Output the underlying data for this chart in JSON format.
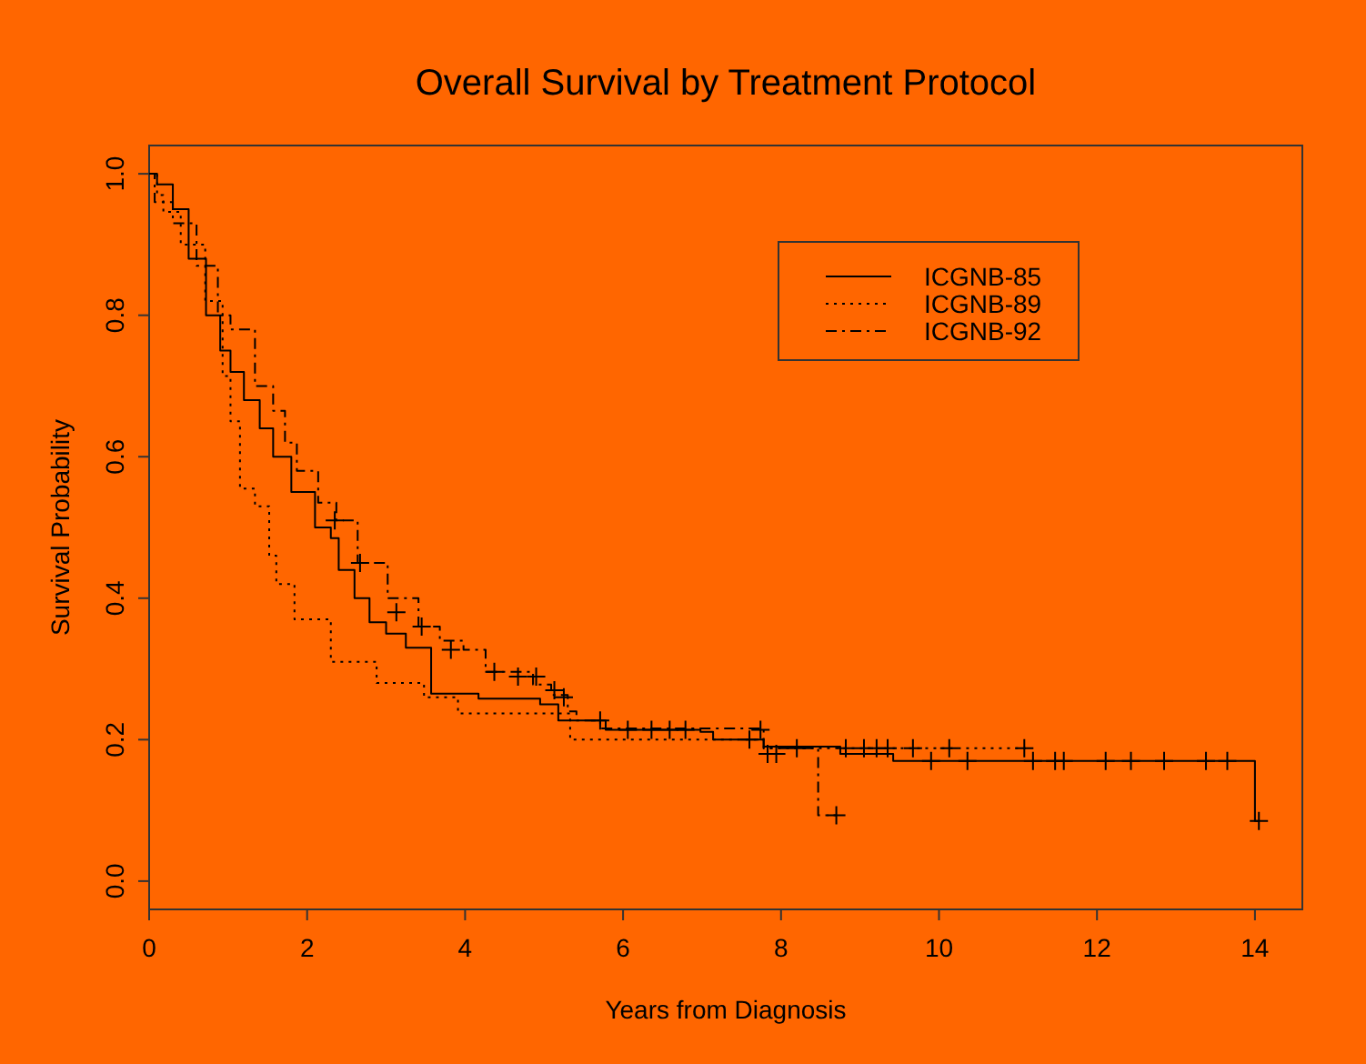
{
  "chart_data": {
    "type": "step",
    "title": "Overall Survival by Treatment Protocol",
    "xlabel": "Years from Diagnosis",
    "ylabel": "Survival Probability",
    "xlim": [
      0,
      14.6
    ],
    "ylim": [
      -0.04,
      1.04
    ],
    "xticks": [
      0,
      2,
      4,
      6,
      8,
      10,
      12,
      14
    ],
    "yticks": [
      {
        "value": 0,
        "label": "0.0"
      },
      {
        "value": 0.2,
        "label": "0.2"
      },
      {
        "value": 0.4,
        "label": "0.4"
      },
      {
        "value": 0.6,
        "label": "0.6"
      },
      {
        "value": 0.8,
        "label": "0.8"
      },
      {
        "value": 1,
        "label": "1.0"
      }
    ],
    "grid": false,
    "legend": "top right",
    "series": [
      {
        "name": "ICGNB-85",
        "color": "#000000",
        "line_style": "solid",
        "x": [
          0,
          0.1,
          0.3,
          0.5,
          0.72,
          0.9,
          1.03,
          1.2,
          1.4,
          1.57,
          1.8,
          2.1,
          2.3,
          2.4,
          2.6,
          2.79,
          3.0,
          3.25,
          3.57,
          4.17,
          4.95,
          5.18,
          5.78,
          6.98,
          7.14,
          7.78,
          8.75,
          9.42,
          14.0,
          14.05
        ],
        "values": [
          1.0,
          0.985,
          0.95,
          0.88,
          0.8,
          0.75,
          0.72,
          0.68,
          0.64,
          0.6,
          0.55,
          0.5,
          0.485,
          0.44,
          0.4,
          0.366,
          0.35,
          0.33,
          0.265,
          0.258,
          0.25,
          0.227,
          0.214,
          0.211,
          0.2,
          0.19,
          0.18,
          0.17,
          0.085,
          0.085
        ]
      },
      {
        "name": "ICGNB-89",
        "color": "#000000",
        "line_style": "dotted",
        "x": [
          0,
          0.1,
          0.18,
          0.4,
          0.71,
          0.93,
          1.03,
          1.15,
          1.34,
          1.52,
          1.61,
          1.84,
          2.3,
          2.88,
          3.48,
          3.91,
          5.33,
          7.78,
          11.1
        ],
        "values": [
          1.0,
          0.97,
          0.946,
          0.9,
          0.82,
          0.714,
          0.65,
          0.555,
          0.53,
          0.46,
          0.42,
          0.37,
          0.31,
          0.28,
          0.26,
          0.237,
          0.2,
          0.188,
          0.188
        ]
      },
      {
        "name": "ICGNB-92",
        "color": "#000000",
        "line_style": "dashed",
        "x": [
          0,
          0.07,
          0.3,
          0.6,
          0.87,
          1.03,
          1.34,
          1.57,
          1.72,
          1.87,
          2.14,
          2.37,
          2.64,
          3.02,
          3.41,
          3.68,
          3.98,
          4.26,
          4.86,
          5.09,
          5.3,
          5.41,
          5.71,
          7.78,
          8.47,
          8.7
        ],
        "values": [
          1.0,
          0.96,
          0.93,
          0.87,
          0.8,
          0.78,
          0.7,
          0.665,
          0.62,
          0.58,
          0.535,
          0.51,
          0.45,
          0.4,
          0.36,
          0.34,
          0.327,
          0.296,
          0.278,
          0.263,
          0.24,
          0.227,
          0.216,
          0.188,
          0.093,
          0.093
        ]
      },
      {
        "type": "scatter",
        "color": "#000000",
        "marker": "cross",
        "x": [
          2.35,
          2.67,
          3.13,
          3.45,
          3.82,
          4.37,
          4.67,
          4.9,
          5.13,
          5.25,
          5.71,
          5.78,
          6.06,
          6.36,
          6.59,
          6.79,
          7.74,
          7.6,
          7.83,
          7.94,
          8.2,
          8.7,
          8.82,
          9.05,
          9.21,
          9.35,
          9.67,
          10.13,
          11.08,
          9.9,
          10.36,
          11.19,
          11.47,
          11.58,
          12.11,
          12.43,
          12.85,
          13.38,
          13.65,
          14.05
        ],
        "values": [
          0.51,
          0.45,
          0.38,
          0.36,
          0.327,
          0.296,
          0.289,
          0.289,
          0.27,
          0.26,
          0.227,
          null,
          0.214,
          0.214,
          0.214,
          0.214,
          0.214,
          0.2,
          0.18,
          0.18,
          0.188,
          0.093,
          0.188,
          0.188,
          0.188,
          0.188,
          0.188,
          0.188,
          0.188,
          0.17,
          0.17,
          0.17,
          0.17,
          0.17,
          0.17,
          0.17,
          0.17,
          0.17,
          0.17,
          0.085
        ]
      }
    ]
  }
}
